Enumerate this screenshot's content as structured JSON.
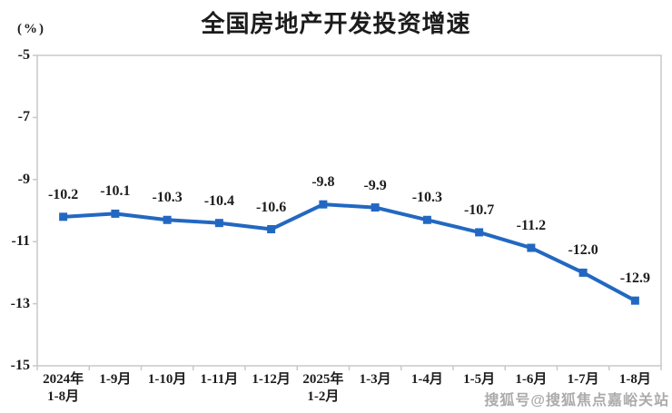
{
  "page": {
    "title": "全国房地产开发投资增速",
    "unit_label": "(%)",
    "watermark": "搜狐号@搜狐焦点嘉峪关站"
  },
  "colors": {
    "line": "#2268c2",
    "marker": "#2268c2",
    "axis": "#c8c8c8",
    "text": "#1c1c1c",
    "watermark": "#ababab",
    "background": "#ffffff"
  },
  "chart_data": {
    "type": "line",
    "title": "全国房地产开发投资增速",
    "ylabel": "(%)",
    "categories": [
      "2024年\n1-8月",
      "1-9月",
      "1-10月",
      "1-11月",
      "1-12月",
      "2025年\n1-2月",
      "1-3月",
      "1-4月",
      "1-5月",
      "1-6月",
      "1-7月",
      "1-8月"
    ],
    "values": [
      -10.2,
      -10.1,
      -10.3,
      -10.4,
      -10.6,
      -9.8,
      -9.9,
      -10.3,
      -10.7,
      -11.2,
      -12.0,
      -12.9
    ],
    "data_labels": [
      "-10.2",
      "-10.1",
      "-10.3",
      "-10.4",
      "-10.6",
      "-9.8",
      "-9.9",
      "-10.3",
      "-10.7",
      "-11.2",
      "-12.0",
      "-12.9"
    ],
    "ylim": [
      -15,
      -5
    ],
    "yticks": [
      -5,
      -7,
      -9,
      -11,
      -13,
      -15
    ],
    "grid": false,
    "legend": "none",
    "marker": "square"
  }
}
